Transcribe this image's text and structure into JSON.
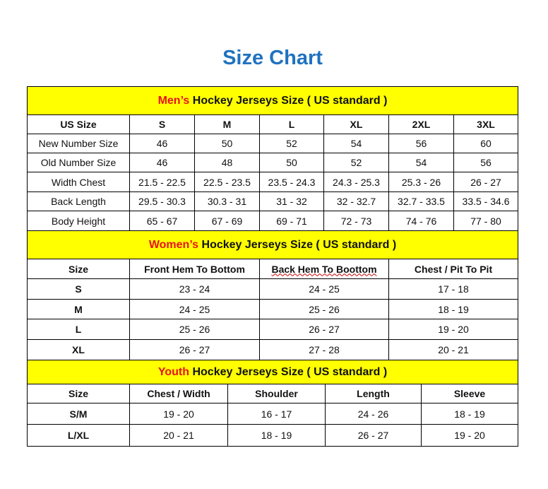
{
  "title": "Size Chart",
  "colors": {
    "title": "#1f72c0",
    "band": "#ffff00",
    "highlight": "#e8121a"
  },
  "men": {
    "title_highlight": "Men’s",
    "title_rest": " Hockey Jerseys Size ( US standard )",
    "headers": [
      "US Size",
      "S",
      "M",
      "L",
      "XL",
      "2XL",
      "3XL"
    ],
    "rows": [
      [
        "New Number Size",
        "46",
        "50",
        "52",
        "54",
        "56",
        "60"
      ],
      [
        "Old Number Size",
        "46",
        "48",
        "50",
        "52",
        "54",
        "56"
      ],
      [
        "Width Chest",
        "21.5 - 22.5",
        "22.5 - 23.5",
        "23.5 - 24.3",
        "24.3 - 25.3",
        "25.3 - 26",
        "26 - 27"
      ],
      [
        "Back Length",
        "29.5 - 30.3",
        "30.3 - 31",
        "31 - 32",
        "32 - 32.7",
        "32.7 - 33.5",
        "33.5 - 34.6"
      ],
      [
        "Body Height",
        "65 - 67",
        "67 - 69",
        "69 - 71",
        "72 - 73",
        "74 - 76",
        "77 - 80"
      ]
    ]
  },
  "women": {
    "title_highlight": "Women’s",
    "title_rest": " Hockey Jerseys Size ( US standard )",
    "headers": [
      "Size",
      "Front Hem To Bottom",
      "Back Hem To Boottom",
      "Chest / Pit To Pit"
    ],
    "rows": [
      [
        "S",
        "23 - 24",
        "24 - 25",
        "17 - 18"
      ],
      [
        "M",
        "24 - 25",
        "25 - 26",
        "18 - 19"
      ],
      [
        "L",
        "25 - 26",
        "26 - 27",
        "19 - 20"
      ],
      [
        "XL",
        "26 - 27",
        "27 - 28",
        "20 - 21"
      ]
    ]
  },
  "youth": {
    "title_highlight": "Youth",
    "title_rest": " Hockey Jerseys Size ( US standard )",
    "headers": [
      "Size",
      "Chest / Width",
      "Shoulder",
      "Length",
      "Sleeve"
    ],
    "rows": [
      [
        "S/M",
        "19 - 20",
        "16 - 17",
        "24 - 26",
        "18 - 19"
      ],
      [
        "L/XL",
        "20 - 21",
        "18 - 19",
        "26 - 27",
        "19 - 20"
      ]
    ]
  }
}
